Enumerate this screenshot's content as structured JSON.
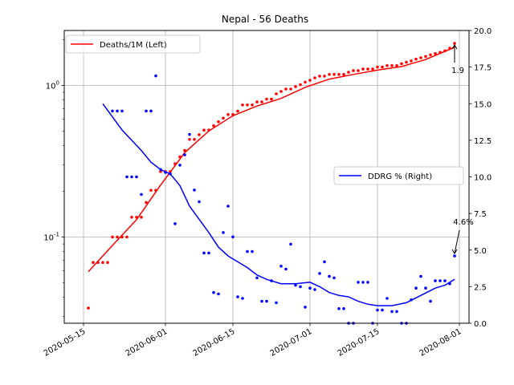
{
  "chart_data": {
    "type": "line",
    "title": "Nepal - 56 Deaths",
    "xlabel": "",
    "ylabel_left": "",
    "ylabel_right": "",
    "x_range": [
      "2020-05-11",
      "2020-08-03"
    ],
    "x_ticks": [
      "2020-05-15",
      "2020-06-01",
      "2020-06-15",
      "2020-07-01",
      "2020-07-15",
      "2020-08-01"
    ],
    "y_left": {
      "scale": "log",
      "range": [
        0.027,
        2.3
      ],
      "major_ticks": [
        0.1,
        1
      ],
      "major_labels": [
        "10^-1",
        "10^0"
      ]
    },
    "y_right": {
      "scale": "linear",
      "range": [
        0,
        20
      ],
      "ticks": [
        0,
        2.5,
        5,
        7.5,
        10,
        12.5,
        15,
        17.5,
        20
      ],
      "tick_labels": [
        "0.0",
        "2.5",
        "5.0",
        "7.5",
        "10.0",
        "12.5",
        "15.0",
        "17.5",
        "20.0"
      ]
    },
    "grid": true,
    "legends": [
      {
        "label": "Deaths/1M (Left)",
        "color": "#ff0000",
        "placement": "upper-left"
      },
      {
        "label": "DDRG % (Right)",
        "color": "#0000ff",
        "placement": "center-right"
      }
    ],
    "series": [
      {
        "name": "Deaths/1M (Left)",
        "color": "#ff0000",
        "axis": "left",
        "style": "line",
        "x": [
          "2020-05-16",
          "2020-05-21",
          "2020-05-26",
          "2020-05-31",
          "2020-06-05",
          "2020-06-10",
          "2020-06-15",
          "2020-06-20",
          "2020-06-25",
          "2020-06-30",
          "2020-07-05",
          "2020-07-10",
          "2020-07-15",
          "2020-07-20",
          "2020-07-25",
          "2020-07-31"
        ],
        "values": [
          0.059,
          0.088,
          0.13,
          0.22,
          0.36,
          0.5,
          0.63,
          0.73,
          0.82,
          0.97,
          1.1,
          1.18,
          1.26,
          1.33,
          1.48,
          1.78
        ]
      },
      {
        "name": "Deaths/1M points",
        "color": "#ff0000",
        "axis": "left",
        "style": "points",
        "x": [
          "2020-05-16",
          "2020-05-17",
          "2020-05-18",
          "2020-05-19",
          "2020-05-20",
          "2020-05-21",
          "2020-05-22",
          "2020-05-23",
          "2020-05-24",
          "2020-05-25",
          "2020-05-26",
          "2020-05-27",
          "2020-05-28",
          "2020-05-29",
          "2020-05-30",
          "2020-05-31",
          "2020-06-01",
          "2020-06-02",
          "2020-06-03",
          "2020-06-04",
          "2020-06-05",
          "2020-06-06",
          "2020-06-07",
          "2020-06-08",
          "2020-06-09",
          "2020-06-10",
          "2020-06-11",
          "2020-06-12",
          "2020-06-13",
          "2020-06-14",
          "2020-06-15",
          "2020-06-16",
          "2020-06-17",
          "2020-06-18",
          "2020-06-19",
          "2020-06-20",
          "2020-06-21",
          "2020-06-22",
          "2020-06-23",
          "2020-06-24",
          "2020-06-25",
          "2020-06-26",
          "2020-06-27",
          "2020-06-28",
          "2020-06-29",
          "2020-06-30",
          "2020-07-01",
          "2020-07-02",
          "2020-07-03",
          "2020-07-04",
          "2020-07-05",
          "2020-07-06",
          "2020-07-07",
          "2020-07-08",
          "2020-07-09",
          "2020-07-10",
          "2020-07-11",
          "2020-07-12",
          "2020-07-13",
          "2020-07-14",
          "2020-07-15",
          "2020-07-16",
          "2020-07-17",
          "2020-07-18",
          "2020-07-19",
          "2020-07-20",
          "2020-07-21",
          "2020-07-22",
          "2020-07-23",
          "2020-07-24",
          "2020-07-25",
          "2020-07-26",
          "2020-07-27",
          "2020-07-28",
          "2020-07-29",
          "2020-07-30",
          "2020-07-31"
        ],
        "values": [
          0.034,
          0.068,
          0.068,
          0.068,
          0.068,
          0.1,
          0.1,
          0.1,
          0.1,
          0.135,
          0.135,
          0.135,
          0.169,
          0.203,
          0.203,
          0.27,
          0.27,
          0.27,
          0.304,
          0.338,
          0.372,
          0.44,
          0.44,
          0.473,
          0.507,
          0.507,
          0.541,
          0.575,
          0.608,
          0.642,
          0.642,
          0.676,
          0.743,
          0.743,
          0.743,
          0.777,
          0.777,
          0.811,
          0.811,
          0.879,
          0.912,
          0.946,
          0.946,
          0.98,
          1.01,
          1.05,
          1.08,
          1.12,
          1.15,
          1.15,
          1.18,
          1.18,
          1.18,
          1.18,
          1.22,
          1.25,
          1.25,
          1.28,
          1.28,
          1.28,
          1.32,
          1.32,
          1.35,
          1.35,
          1.35,
          1.39,
          1.42,
          1.45,
          1.49,
          1.52,
          1.55,
          1.59,
          1.62,
          1.65,
          1.69,
          1.76,
          1.89
        ]
      },
      {
        "name": "DDRG % (Right)",
        "color": "#0000ff",
        "axis": "right",
        "style": "line",
        "x": [
          "2020-05-19",
          "2020-05-21",
          "2020-05-23",
          "2020-05-25",
          "2020-05-27",
          "2020-05-29",
          "2020-05-31",
          "2020-06-02",
          "2020-06-04",
          "2020-06-06",
          "2020-06-08",
          "2020-06-10",
          "2020-06-12",
          "2020-06-14",
          "2020-06-16",
          "2020-06-18",
          "2020-06-20",
          "2020-06-22",
          "2020-06-25",
          "2020-06-28",
          "2020-07-01",
          "2020-07-03",
          "2020-07-05",
          "2020-07-07",
          "2020-07-09",
          "2020-07-11",
          "2020-07-13",
          "2020-07-15",
          "2020-07-18",
          "2020-07-21",
          "2020-07-24",
          "2020-07-27",
          "2020-07-29",
          "2020-07-31"
        ],
        "values": [
          15.0,
          14.1,
          13.2,
          12.5,
          11.8,
          11.0,
          10.5,
          10.2,
          9.4,
          8.0,
          7.1,
          6.2,
          5.2,
          4.6,
          4.2,
          3.8,
          3.3,
          3.0,
          2.7,
          2.7,
          2.8,
          2.5,
          2.1,
          1.9,
          1.8,
          1.5,
          1.3,
          1.2,
          1.2,
          1.4,
          1.9,
          2.4,
          2.6,
          3.0
        ]
      },
      {
        "name": "DDRG points",
        "color": "#0000ff",
        "axis": "right",
        "style": "points",
        "x": [
          "2020-05-21",
          "2020-05-22",
          "2020-05-23",
          "2020-05-24",
          "2020-05-25",
          "2020-05-26",
          "2020-05-27",
          "2020-05-28",
          "2020-05-29",
          "2020-05-30",
          "2020-05-31",
          "2020-06-01",
          "2020-06-02",
          "2020-06-03",
          "2020-06-04",
          "2020-06-05",
          "2020-06-06",
          "2020-06-07",
          "2020-06-08",
          "2020-06-09",
          "2020-06-10",
          "2020-06-11",
          "2020-06-12",
          "2020-06-13",
          "2020-06-14",
          "2020-06-15",
          "2020-06-16",
          "2020-06-17",
          "2020-06-18",
          "2020-06-19",
          "2020-06-20",
          "2020-06-21",
          "2020-06-22",
          "2020-06-23",
          "2020-06-24",
          "2020-06-25",
          "2020-06-26",
          "2020-06-27",
          "2020-06-28",
          "2020-06-29",
          "2020-06-30",
          "2020-07-01",
          "2020-07-02",
          "2020-07-03",
          "2020-07-04",
          "2020-07-05",
          "2020-07-06",
          "2020-07-07",
          "2020-07-08",
          "2020-07-09",
          "2020-07-10",
          "2020-07-11",
          "2020-07-12",
          "2020-07-13",
          "2020-07-14",
          "2020-07-15",
          "2020-07-16",
          "2020-07-17",
          "2020-07-18",
          "2020-07-19",
          "2020-07-20",
          "2020-07-21",
          "2020-07-22",
          "2020-07-23",
          "2020-07-24",
          "2020-07-25",
          "2020-07-26",
          "2020-07-27",
          "2020-07-28",
          "2020-07-29",
          "2020-07-30",
          "2020-07-31"
        ],
        "values": [
          14.5,
          14.5,
          14.5,
          10.0,
          10.0,
          10.0,
          8.8,
          14.5,
          14.5,
          16.9,
          10.5,
          10.3,
          10.2,
          6.8,
          10.8,
          11.5,
          12.9,
          9.1,
          8.3,
          4.8,
          4.8,
          2.1,
          2.0,
          6.2,
          8.0,
          5.9,
          1.8,
          1.7,
          4.9,
          4.9,
          3.1,
          1.5,
          1.5,
          2.9,
          1.4,
          3.9,
          3.7,
          5.4,
          2.6,
          2.5,
          1.1,
          2.4,
          2.3,
          3.4,
          4.2,
          3.2,
          3.1,
          1.0,
          1.0,
          0.0,
          0.0,
          2.8,
          2.8,
          2.8,
          0.0,
          0.9,
          0.9,
          1.7,
          0.8,
          0.8,
          0.0,
          0.0,
          1.6,
          2.4,
          3.2,
          2.4,
          1.5,
          2.9,
          2.9,
          2.9,
          2.7,
          4.6
        ]
      }
    ],
    "annotations": [
      {
        "text": "1.9",
        "x": "2020-07-31",
        "y_left": 1.89
      },
      {
        "text": "4.6%",
        "x": "2020-07-31",
        "y_right": 4.6
      }
    ]
  }
}
